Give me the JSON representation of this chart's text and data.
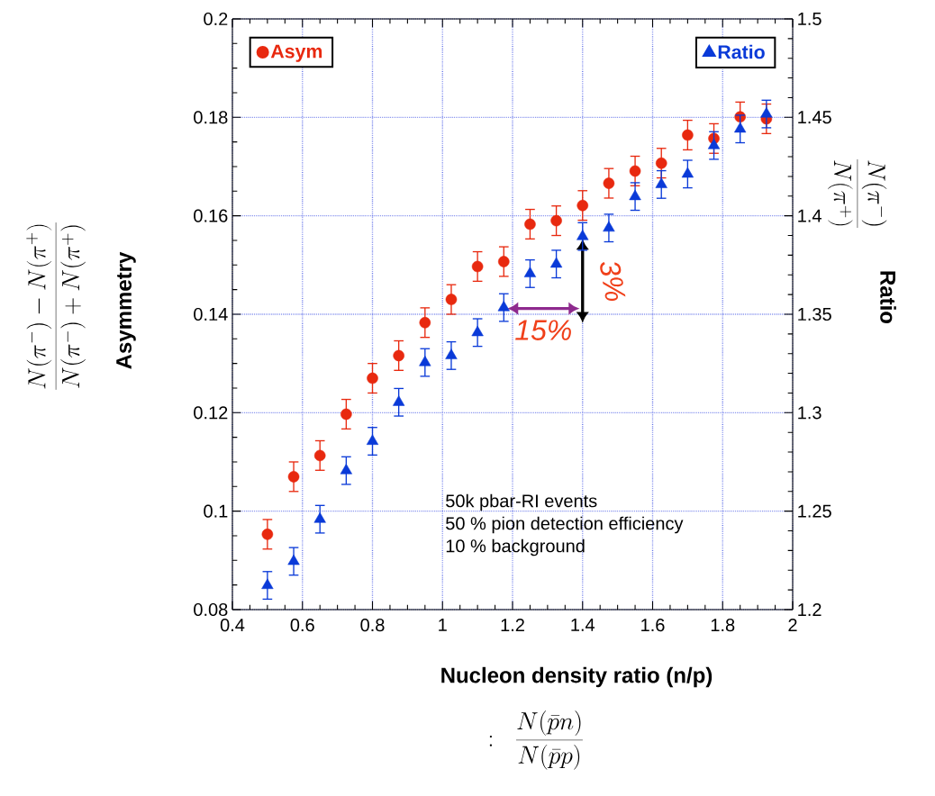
{
  "chart_data": {
    "type": "scatter",
    "x": [
      0.5,
      0.575,
      0.65,
      0.725,
      0.8,
      0.875,
      0.95,
      1.025,
      1.1,
      1.175,
      1.25,
      1.325,
      1.4,
      1.475,
      1.55,
      1.625,
      1.7,
      1.775,
      1.85,
      1.925
    ],
    "series": [
      {
        "name": "Asym",
        "color": "#e8290f",
        "marker": "circle",
        "values": [
          0.0953,
          0.107,
          0.1113,
          0.1197,
          0.127,
          0.1316,
          0.1383,
          0.143,
          0.1497,
          0.1507,
          0.1583,
          0.159,
          0.1621,
          0.1666,
          0.1691,
          0.1707,
          0.1764,
          0.1757,
          0.1801,
          0.1797
        ],
        "errors": [
          0.003,
          0.003,
          0.003,
          0.003,
          0.003,
          0.003,
          0.003,
          0.003,
          0.003,
          0.003,
          0.003,
          0.003,
          0.003,
          0.003,
          0.003,
          0.003,
          0.003,
          0.003,
          0.003,
          0.003
        ]
      },
      {
        "name": "Ratio",
        "color": "#0a3ad8",
        "marker": "triangle",
        "axis": "y2",
        "values": [
          1.2123,
          1.2245,
          1.2459,
          1.2706,
          1.2855,
          1.3053,
          1.3255,
          1.329,
          1.3407,
          1.3534,
          1.3706,
          1.3755,
          1.3895,
          1.3938,
          1.4098,
          1.4159,
          1.4212,
          1.4357,
          1.4441,
          1.4517
        ],
        "errors": [
          0.007,
          0.007,
          0.007,
          0.007,
          0.007,
          0.007,
          0.007,
          0.007,
          0.007,
          0.007,
          0.007,
          0.007,
          0.007,
          0.007,
          0.007,
          0.007,
          0.007,
          0.007,
          0.007,
          0.007
        ]
      }
    ],
    "xlabel": "Nucleon density ratio (n/p)",
    "ylabel": "Asymmetry",
    "y2label": "Ratio",
    "xlim": [
      0.4,
      2
    ],
    "xticks": [
      0.4,
      0.6,
      0.8,
      1,
      1.2,
      1.4,
      1.6,
      1.8,
      2
    ],
    "ylim": [
      0.08,
      0.2
    ],
    "yticks": [
      0.08,
      0.1,
      0.12,
      0.14,
      0.16,
      0.18,
      0.2
    ],
    "y2lim": [
      1.2,
      1.5
    ],
    "y2ticks": [
      1.2,
      1.25,
      1.3,
      1.35,
      1.4,
      1.45,
      1.5
    ],
    "grid": true,
    "legend": "top",
    "annotations": [
      "\\frac{N(\\pi^{-})-N(\\pi^{+})}{N(\\pi^{-})+N(\\pi^{+})}",
      "\\frac{N(\\pi^{-})}{N(\\pi^{+})}",
      ":\\;\\; \\frac{N(\\bar{p}n)}{N(\\bar{p}p)}",
      "50k pbar-RI events",
      "50 % pion detection efficiency",
      "10 % background",
      {
        "text": "15%",
        "x": 1.175,
        "y": 0.1414
      },
      {
        "text": "3%",
        "x": 1.4,
        "y": 0.1558
      }
    ]
  }
}
